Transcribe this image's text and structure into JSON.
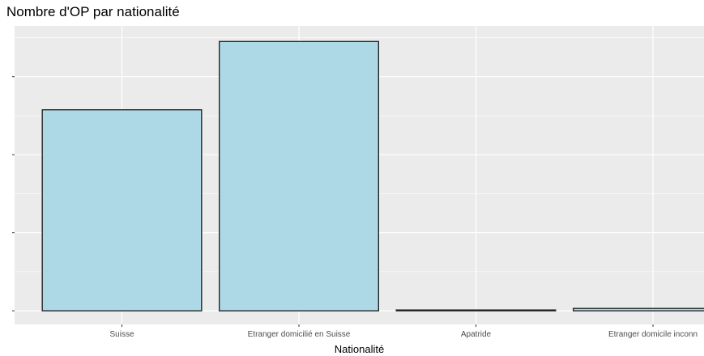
{
  "chart_data": {
    "type": "bar",
    "title": "Nombre d'OP par nationalité",
    "xlabel": "Nationalité",
    "ylabel": "",
    "categories": [
      "Suisse",
      "Etranger domicilié en Suisse",
      "Apatride",
      "Etranger domicile inconn"
    ],
    "values": [
      5150,
      6900,
      15,
      60
    ],
    "ylim": [
      -350,
      7300
    ],
    "ytick_values": [
      0,
      2000,
      4000,
      6000
    ],
    "grid": true,
    "legend": "none",
    "colors": {
      "bar_fill": "#add8e6",
      "bar_stroke": "#1a1a1a",
      "panel_background": "#ebebeb",
      "gridline": "#ffffff",
      "text": "#4d4d4d"
    }
  }
}
